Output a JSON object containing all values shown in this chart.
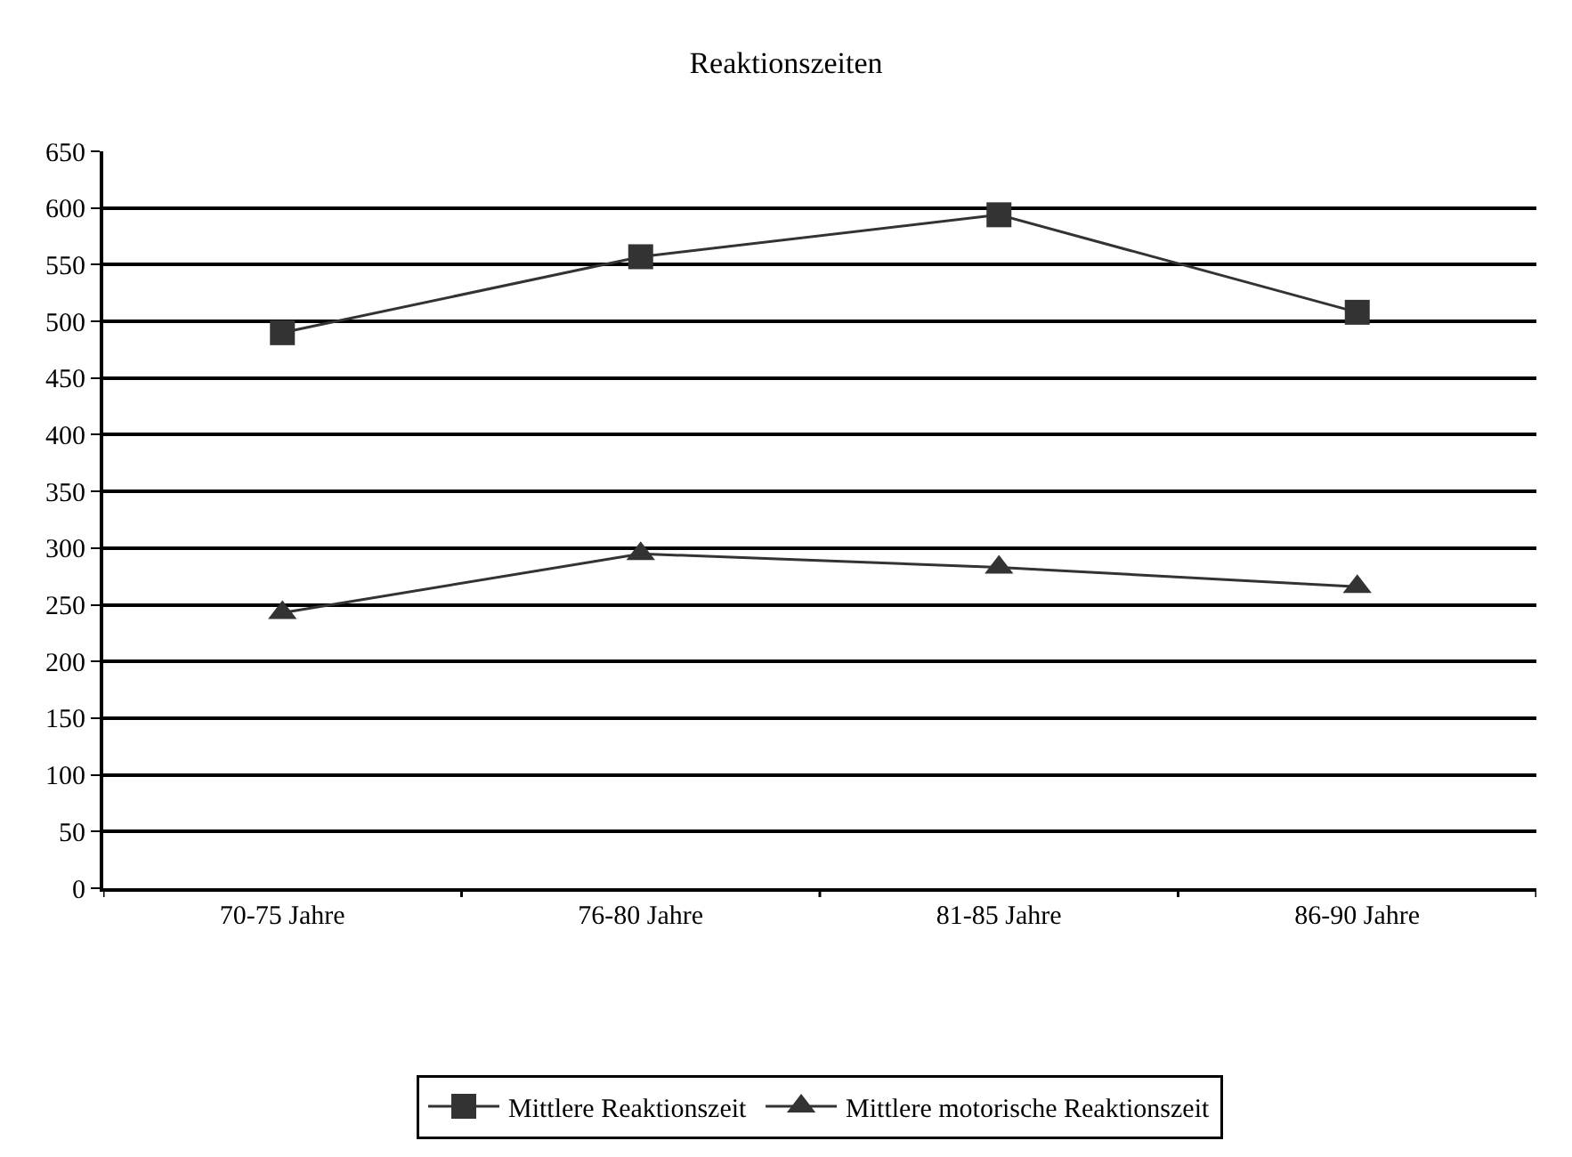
{
  "chart_data": {
    "type": "line",
    "title": "Reaktionszeiten",
    "categories": [
      "70-75 Jahre",
      "76-80 Jahre",
      "81-85 Jahre",
      "86-90 Jahre"
    ],
    "series": [
      {
        "name": "Mittlere Reaktionszeit",
        "color": "#333333",
        "marker": "square",
        "values": [
          490,
          557,
          594,
          508
        ]
      },
      {
        "name": "Mittlere motorische Reaktionszeit",
        "color": "#333333",
        "marker": "triangle",
        "values": [
          243,
          295,
          283,
          266
        ]
      }
    ],
    "ylim": [
      0,
      650
    ],
    "yticks": [
      0,
      50,
      100,
      150,
      200,
      250,
      300,
      350,
      400,
      450,
      500,
      550,
      600,
      650
    ],
    "grid": "y",
    "legend": "bottom",
    "line_style": "solid"
  }
}
